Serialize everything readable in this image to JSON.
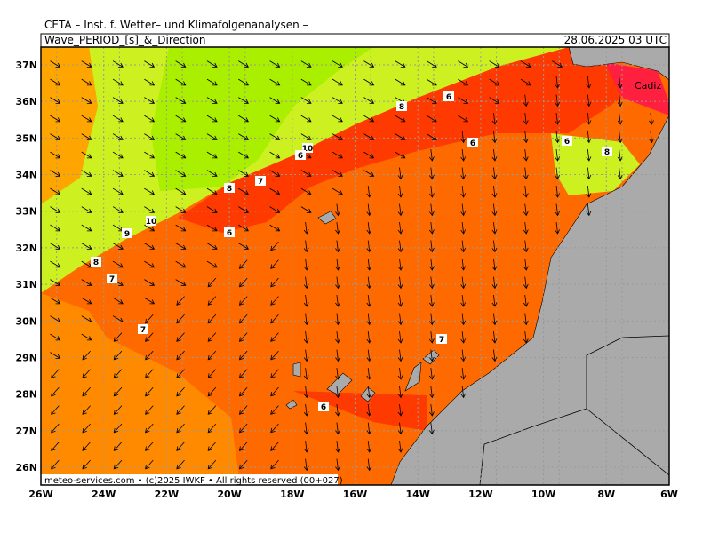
{
  "header": {
    "title": "CETA – Inst. f. Wetter– und Klimafolgenanalysen –",
    "product": "Wave_PERIOD_[s]_&_Direction",
    "date": "28.06.2025 03 UTC"
  },
  "axes": {
    "lat_labels": [
      "37N",
      "36N",
      "35N",
      "34N",
      "33N",
      "32N",
      "31N",
      "30N",
      "29N",
      "28N",
      "27N",
      "26N"
    ],
    "lon_labels": [
      "26W",
      "24W",
      "22W",
      "20W",
      "18W",
      "16W",
      "14W",
      "12W",
      "10W",
      "8W",
      "6W"
    ]
  },
  "contour_labels": [
    "8",
    "6",
    "6",
    "6",
    "8",
    "10",
    "6",
    "7",
    "8",
    "10",
    "9",
    "6",
    "8",
    "7",
    "7",
    "7",
    "6"
  ],
  "place_labels": [
    "Cadiz"
  ],
  "footer": {
    "credit": "meteo-services.com • (c)2025 IWKF • All rights reserved (00+027)"
  }
}
